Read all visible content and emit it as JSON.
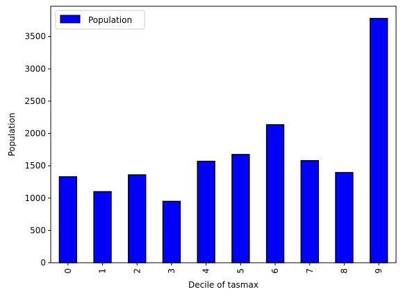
{
  "chart_data": {
    "type": "bar",
    "title": "",
    "xlabel": "Decile of tasmax",
    "ylabel": "Population",
    "categories": [
      "0",
      "1",
      "2",
      "3",
      "4",
      "5",
      "6",
      "7",
      "8",
      "9"
    ],
    "series": [
      {
        "name": "Population",
        "color": "#0000ff",
        "edge_color": "#000000",
        "values": [
          1330,
          1100,
          1360,
          950,
          1570,
          1675,
          2135,
          1580,
          1395,
          3780
        ]
      }
    ],
    "ylim": [
      0,
      3969
    ],
    "yticks": [
      0,
      500,
      1000,
      1500,
      2000,
      2500,
      3000,
      3500
    ],
    "xtick_rotation": 90,
    "legend_position": "upper-left",
    "grid": false
  }
}
